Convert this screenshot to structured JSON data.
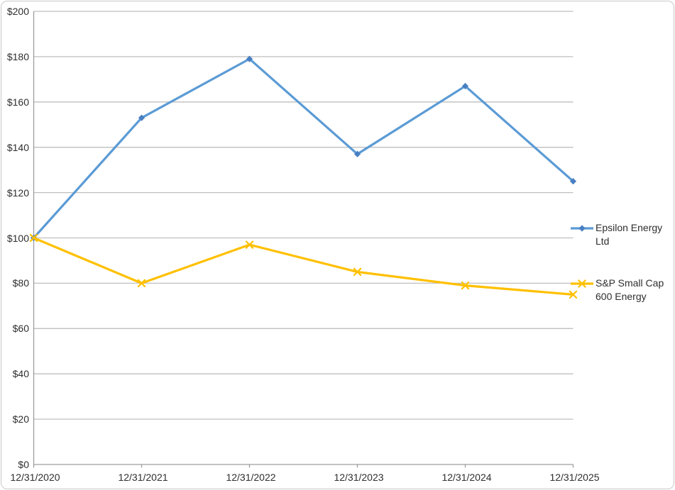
{
  "chart_data": {
    "type": "line",
    "title": "",
    "xlabel": "",
    "ylabel": "",
    "categories": [
      "12/31/2020",
      "12/31/2021",
      "12/31/2022",
      "12/31/2023",
      "12/31/2024",
      "12/31/2025"
    ],
    "series": [
      {
        "name": "Epsilon Energy Ltd",
        "values": [
          100,
          153,
          179,
          137,
          167,
          125
        ],
        "color": "#5b9bd5",
        "marker_color": "#4a80c2",
        "marker": "diamond"
      },
      {
        "name": "S&P Small Cap 600 Energy",
        "values": [
          100,
          80,
          97,
          85,
          79,
          75
        ],
        "color": "#ffc000",
        "marker_color": "#ffc000",
        "marker": "x"
      }
    ],
    "ylim": [
      0,
      200
    ],
    "ytick_step": 20,
    "ytick_labels": [
      "$0",
      "$20",
      "$40",
      "$60",
      "$80",
      "$100",
      "$120",
      "$140",
      "$160",
      "$180",
      "$200"
    ],
    "grid": true,
    "legend_position": "right"
  },
  "colors": {
    "background": "#ffffff",
    "gridline": "#bfbfbf",
    "axis": "#9d9d9d",
    "text": "#2e2e2e",
    "frame_border": "#c9c9c9"
  }
}
